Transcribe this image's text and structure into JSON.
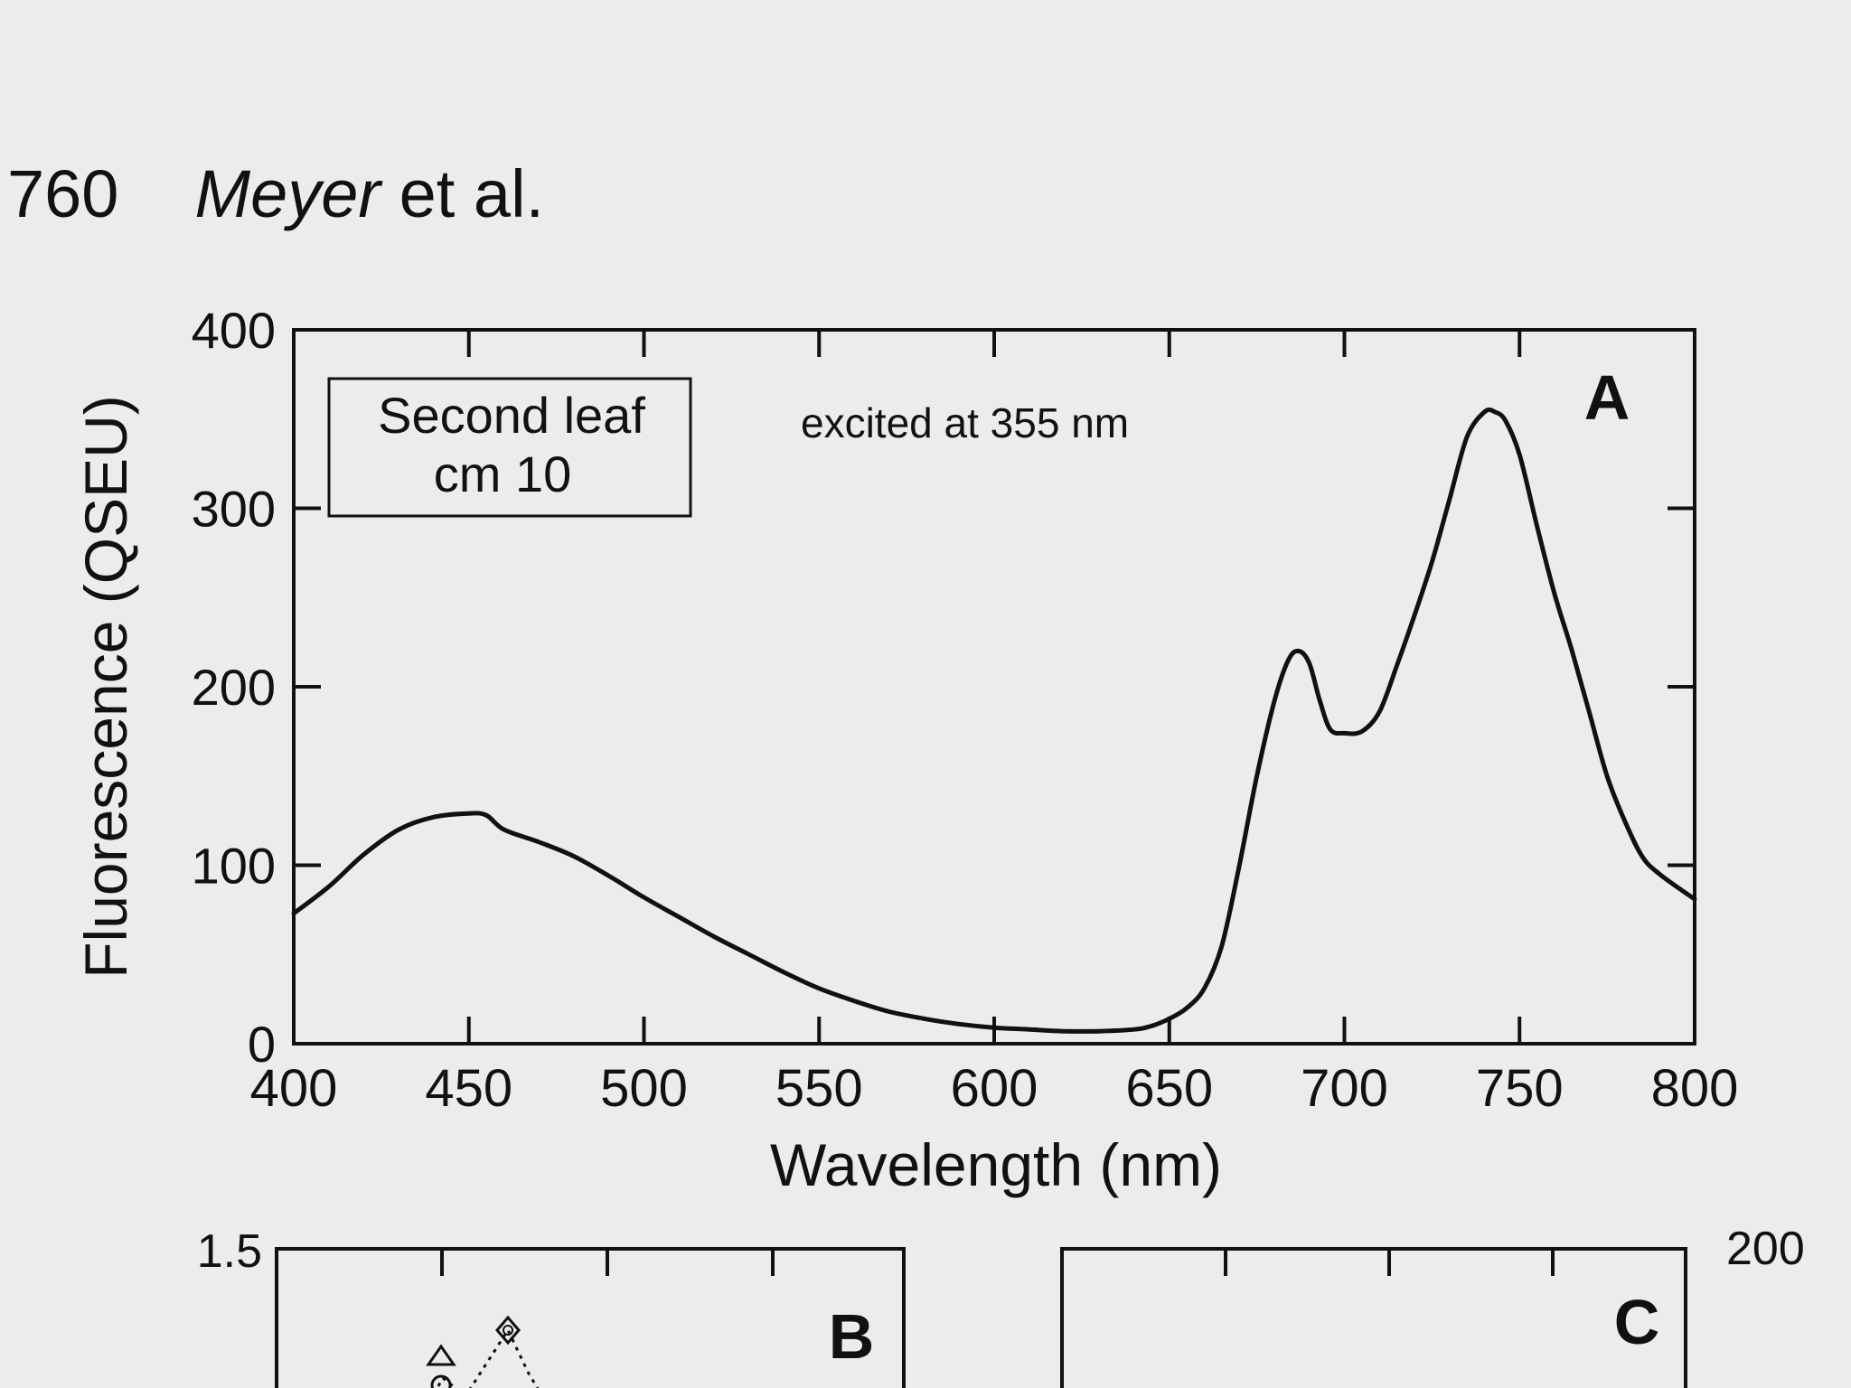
{
  "header": {
    "page_number": "760",
    "author": "Meyer",
    "author_suffix": " et al."
  },
  "panel_a": {
    "panel_label": "A",
    "legend_lines": [
      "Second leaf",
      "cm 10"
    ],
    "annotation": "excited at 355 nm"
  },
  "panel_b": {
    "panel_label": "B",
    "y_top_tick": "1.5"
  },
  "panel_c": {
    "panel_label": "C",
    "y_top_tick": "200"
  },
  "chart_data": [
    {
      "type": "line",
      "title": "",
      "xlabel": "Wavelength (nm)",
      "ylabel": "Fluorescence (QSEU)",
      "xlim": [
        400,
        800
      ],
      "ylim": [
        0,
        400
      ],
      "xticks": [
        400,
        450,
        500,
        550,
        600,
        650,
        700,
        750,
        800
      ],
      "yticks": [
        0,
        100,
        200,
        300,
        400
      ],
      "grid": false,
      "series": [
        {
          "x": [
            400,
            410,
            420,
            430,
            440,
            450,
            455,
            460,
            470,
            480,
            490,
            500,
            510,
            520,
            530,
            540,
            550,
            560,
            570,
            580,
            590,
            600,
            610,
            620,
            630,
            640,
            645,
            650,
            655,
            660,
            665,
            670,
            675,
            680,
            684,
            687,
            690,
            693,
            696,
            700,
            705,
            710,
            715,
            720,
            725,
            730,
            735,
            740,
            743,
            746,
            750,
            755,
            760,
            765,
            770,
            775,
            780,
            785,
            790,
            800
          ],
          "y": [
            73,
            88,
            106,
            120,
            127,
            129,
            128,
            120,
            113,
            105,
            94,
            82,
            71,
            60,
            50,
            40,
            31,
            24,
            18,
            14,
            11,
            9,
            8,
            7,
            7,
            8,
            10,
            14,
            20,
            31,
            55,
            100,
            150,
            192,
            215,
            220,
            213,
            192,
            176,
            174,
            175,
            186,
            212,
            240,
            270,
            305,
            340,
            354,
            354,
            349,
            330,
            290,
            252,
            220,
            185,
            150,
            125,
            105,
            95,
            81
          ]
        }
      ]
    }
  ]
}
